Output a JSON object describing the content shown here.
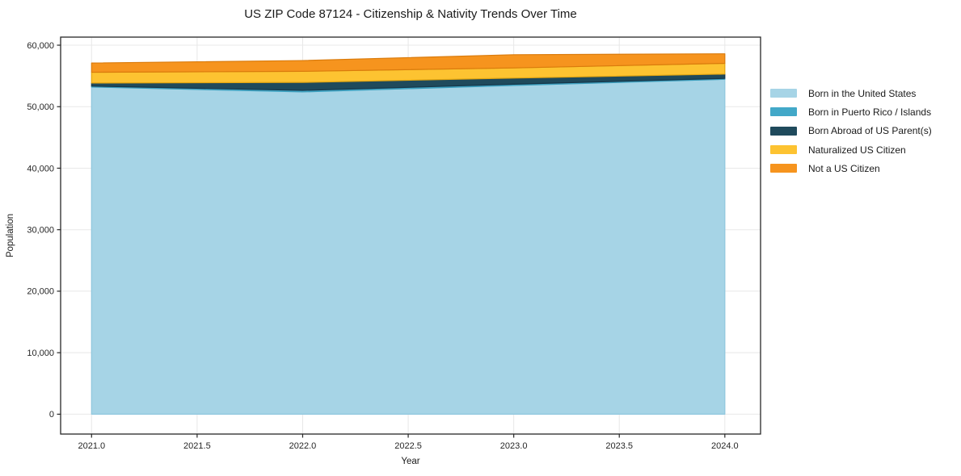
{
  "figure": {
    "background": "#ffffff"
  },
  "chart_data": {
    "type": "area",
    "stacked": true,
    "title": "US ZIP Code 87124 - Citizenship & Nativity Trends Over Time",
    "xlabel": "Year",
    "ylabel": "Population",
    "x": [
      2021,
      2022,
      2023,
      2024
    ],
    "series": [
      {
        "name": "Born in the United States",
        "color": "#a6d4e6",
        "edge": "#8fc7de",
        "values": [
          53200,
          52400,
          53450,
          54450
        ]
      },
      {
        "name": "Born in Puerto Rico / Islands",
        "color": "#42a8c8",
        "edge": "#3c9fbe",
        "values": [
          150,
          250,
          200,
          150
        ]
      },
      {
        "name": "Born Abroad of US Parent(s)",
        "color": "#1f4a5c",
        "edge": "#16374a",
        "values": [
          500,
          1300,
          1000,
          700
        ]
      },
      {
        "name": "Naturalized US Citizen",
        "color": "#fdc331",
        "edge": "#e3a611",
        "values": [
          1750,
          1800,
          1650,
          1750
        ]
      },
      {
        "name": "Not a US Citizen",
        "color": "#f6941e",
        "edge": "#da7b0c",
        "values": [
          1500,
          1750,
          2150,
          1550
        ]
      }
    ],
    "totals": [
      57100,
      57500,
      58450,
      58600
    ],
    "xticks": [
      {
        "v": 2021.0,
        "label": "2021.0"
      },
      {
        "v": 2021.5,
        "label": "2021.5"
      },
      {
        "v": 2022.0,
        "label": "2022.0"
      },
      {
        "v": 2022.5,
        "label": "2022.5"
      },
      {
        "v": 2023.0,
        "label": "2023.0"
      },
      {
        "v": 2023.5,
        "label": "2023.5"
      },
      {
        "v": 2024.0,
        "label": "2024.0"
      }
    ],
    "yticks": [
      {
        "v": 0,
        "label": "0"
      },
      {
        "v": 10000,
        "label": "10,000"
      },
      {
        "v": 20000,
        "label": "20,000"
      },
      {
        "v": 30000,
        "label": "30,000"
      },
      {
        "v": 40000,
        "label": "40,000"
      },
      {
        "v": 50000,
        "label": "50,000"
      },
      {
        "v": 60000,
        "label": "60,000"
      }
    ],
    "xlim": [
      2020.85,
      2024.17
    ],
    "ylim": [
      -3240,
      61310
    ],
    "grid": true,
    "legend_position": "outside-right",
    "colors": {
      "grid": "#e8e8e8",
      "spine": "#262626",
      "text": "#1a1a1a",
      "tick_label": "#262626"
    }
  }
}
